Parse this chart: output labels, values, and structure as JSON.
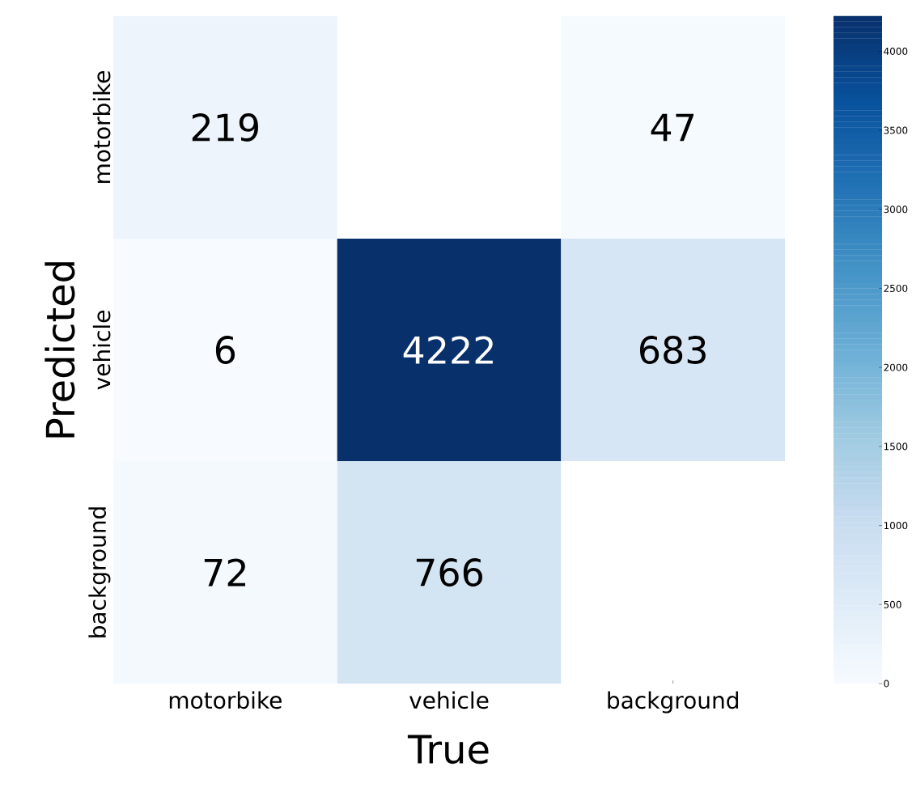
{
  "chart_data": {
    "type": "heatmap",
    "xlabel": "True",
    "ylabel": "Predicted",
    "categories": [
      "motorbike",
      "vehicle",
      "background"
    ],
    "y_categories": [
      "motorbike",
      "vehicle",
      "background"
    ],
    "cells": [
      [
        219,
        null,
        47
      ],
      [
        6,
        4222,
        683
      ],
      [
        72,
        766,
        null
      ]
    ],
    "clim": [
      0,
      4222
    ],
    "cticks": [
      0,
      500,
      1000,
      1500,
      2000,
      2500,
      3000,
      3500,
      4000
    ],
    "data_labels": true
  }
}
